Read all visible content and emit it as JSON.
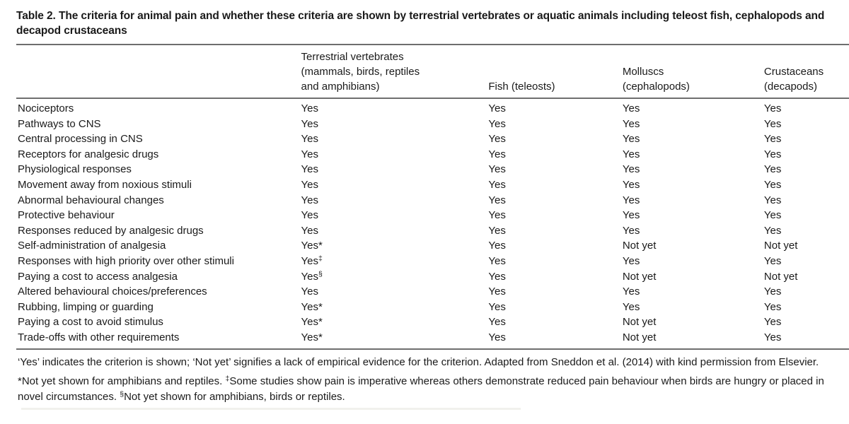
{
  "page": {
    "background": "#ffffff",
    "text_color": "#1a1a1a",
    "rule_color": "#6e6e6e"
  },
  "title": "Table 2. The criteria for animal pain and whether these criteria are shown by terrestrial vertebrates or aquatic animals including teleost fish, cephalopods and decapod crustaceans",
  "table": {
    "column_headers": [
      {
        "name": "criterion-column",
        "lines": [
          ""
        ]
      },
      {
        "name": "terrestrial-vertebrates-column",
        "lines": [
          "Terrestrial vertebrates",
          "(mammals, birds, reptiles",
          "and amphibians)"
        ]
      },
      {
        "name": "fish-column",
        "lines": [
          "Fish (teleosts)"
        ]
      },
      {
        "name": "molluscs-column",
        "lines": [
          "Molluscs",
          "(cephalopods)"
        ]
      },
      {
        "name": "crustaceans-column",
        "lines": [
          "Crustaceans",
          "(decapods)"
        ]
      }
    ],
    "rows": [
      {
        "criterion": "Nociceptors",
        "cells": [
          "Yes",
          "Yes",
          "Yes",
          "Yes"
        ]
      },
      {
        "criterion": "Pathways to CNS",
        "cells": [
          "Yes",
          "Yes",
          "Yes",
          "Yes"
        ]
      },
      {
        "criterion": "Central processing in CNS",
        "cells": [
          "Yes",
          "Yes",
          "Yes",
          "Yes"
        ]
      },
      {
        "criterion": "Receptors for analgesic drugs",
        "cells": [
          "Yes",
          "Yes",
          "Yes",
          "Yes"
        ]
      },
      {
        "criterion": "Physiological responses",
        "cells": [
          "Yes",
          "Yes",
          "Yes",
          "Yes"
        ]
      },
      {
        "criterion": "Movement away from noxious stimuli",
        "cells": [
          "Yes",
          "Yes",
          "Yes",
          "Yes"
        ]
      },
      {
        "criterion": "Abnormal behavioural changes",
        "cells": [
          "Yes",
          "Yes",
          "Yes",
          "Yes"
        ]
      },
      {
        "criterion": "Protective behaviour",
        "cells": [
          "Yes",
          "Yes",
          "Yes",
          "Yes"
        ]
      },
      {
        "criterion": "Responses reduced by analgesic drugs",
        "cells": [
          "Yes",
          "Yes",
          "Yes",
          "Yes"
        ]
      },
      {
        "criterion": "Self-administration of analgesia",
        "cells": [
          "Yes*",
          "Yes",
          "Not yet",
          "Not yet"
        ]
      },
      {
        "criterion": "Responses with high priority over other stimuli",
        "cells": [
          {
            "t": "Yes",
            "sup": "‡"
          },
          "Yes",
          "Yes",
          "Yes"
        ]
      },
      {
        "criterion": "Paying a cost to access analgesia",
        "cells": [
          {
            "t": "Yes",
            "sup": "§"
          },
          "Yes",
          "Not yet",
          "Not yet"
        ]
      },
      {
        "criterion": "Altered behavioural choices/preferences",
        "cells": [
          "Yes",
          "Yes",
          "Yes",
          "Yes"
        ]
      },
      {
        "criterion": "Rubbing, limping or guarding",
        "cells": [
          "Yes*",
          "Yes",
          "Yes",
          "Yes"
        ]
      },
      {
        "criterion": "Paying a cost to avoid stimulus",
        "cells": [
          "Yes*",
          "Yes",
          "Not yet",
          "Yes"
        ]
      },
      {
        "criterion": "Trade-offs with other requirements",
        "cells": [
          "Yes*",
          "Yes",
          "Not yet",
          "Yes"
        ]
      }
    ]
  },
  "footnotes": {
    "general": "‘Yes’ indicates the criterion is shown; ‘Not yet’ signifies a lack of empirical evidence for the criterion. Adapted from Sneddon et al. (2014) with kind permission from Elsevier.",
    "symbols": [
      {
        "t": "*Not yet shown for amphibians and reptiles. "
      },
      {
        "t": "‡",
        "sup": true
      },
      {
        "t": "Some studies show pain is imperative whereas others demonstrate reduced pain behaviour when birds are hungry or placed in novel circumstances. "
      },
      {
        "t": "§",
        "sup": true
      },
      {
        "t": "Not yet shown for amphibians, birds or reptiles."
      }
    ]
  }
}
